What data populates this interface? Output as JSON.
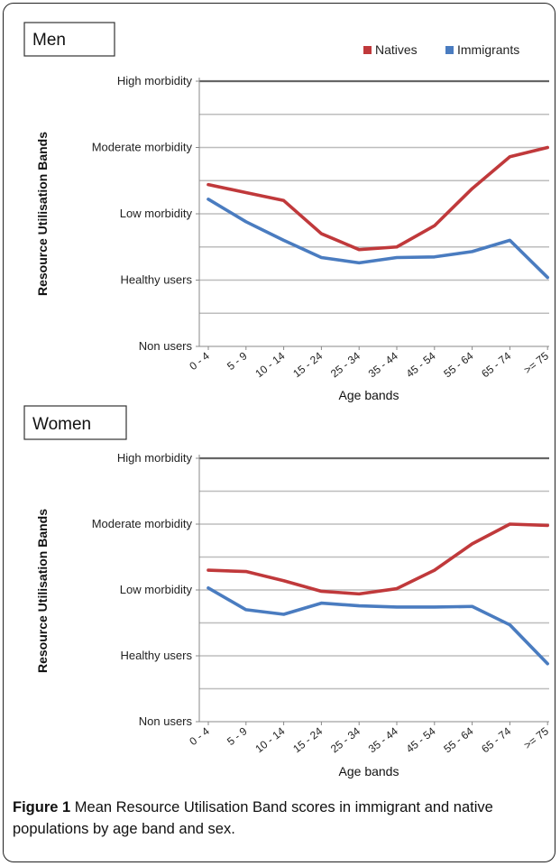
{
  "legend": [
    {
      "label": "Natives",
      "color": "#c0393b"
    },
    {
      "label": "Immigrants",
      "color": "#4a7cc0"
    }
  ],
  "caption": {
    "label": "Figure 1",
    "text": "Mean Resource Utilisation Band scores in immigrant and native populations by age band and sex",
    "end": "."
  },
  "chart_data": [
    {
      "type": "line",
      "title": "Men",
      "xlabel": "Age bands",
      "ylabel": "Resource Utilisation Bands",
      "categories": [
        "0 - 4",
        "5 - 9",
        "10 - 14",
        "15 - 24",
        "25 - 34",
        "35 - 44",
        "45 - 54",
        "55 - 64",
        "65 - 74",
        ">= 75"
      ],
      "y_tick_labels": [
        "Non users",
        "Healthy users",
        "Low morbidity",
        "Moderate morbidity",
        "High morbidity"
      ],
      "ylim": [
        0,
        4
      ],
      "grid": true,
      "series": [
        {
          "name": "Natives",
          "color": "#c0393b",
          "values": [
            2.44,
            2.32,
            2.2,
            1.7,
            1.46,
            1.5,
            1.82,
            2.38,
            2.86,
            3.0
          ]
        },
        {
          "name": "Immigrants",
          "color": "#4a7cc0",
          "values": [
            2.22,
            1.88,
            1.6,
            1.34,
            1.26,
            1.34,
            1.35,
            1.43,
            1.6,
            1.04
          ]
        }
      ]
    },
    {
      "type": "line",
      "title": "Women",
      "xlabel": "Age bands",
      "ylabel": "Resource Utilisation Bands",
      "categories": [
        "0 - 4",
        "5 - 9",
        "10 - 14",
        "15 - 24",
        "25 - 34",
        "35 - 44",
        "45 - 54",
        "55 - 64",
        "65 - 74",
        ">= 75"
      ],
      "y_tick_labels": [
        "Non users",
        "Healthy users",
        "Low morbidity",
        "Moderate morbidity",
        "High morbidity"
      ],
      "ylim": [
        0,
        4
      ],
      "grid": true,
      "series": [
        {
          "name": "Natives",
          "color": "#c0393b",
          "values": [
            2.3,
            2.28,
            2.14,
            1.98,
            1.94,
            2.02,
            2.3,
            2.7,
            3.0,
            2.98
          ]
        },
        {
          "name": "Immigrants",
          "color": "#4a7cc0",
          "values": [
            2.03,
            1.7,
            1.63,
            1.8,
            1.76,
            1.74,
            1.74,
            1.75,
            1.47,
            0.88
          ]
        }
      ]
    }
  ]
}
